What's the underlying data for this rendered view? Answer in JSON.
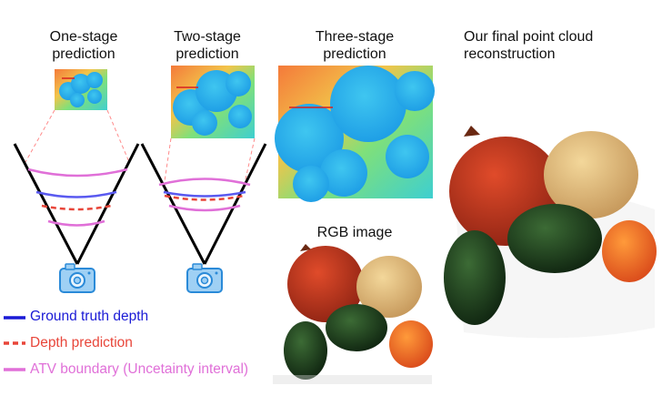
{
  "titles": {
    "one_stage": [
      "One-stage",
      "prediction"
    ],
    "two_stage": [
      "Two-stage",
      "prediction"
    ],
    "three_stage": [
      "Three-stage",
      "prediction"
    ],
    "final": [
      "Our final point cloud",
      "reconstruction"
    ],
    "rgb": "RGB image"
  },
  "legend": [
    {
      "label": "Ground truth depth",
      "color": "#1a1ad6",
      "style": "solid"
    },
    {
      "label": "Depth prediction",
      "color": "#e8463a",
      "style": "dashed"
    },
    {
      "label": "ATV boundary (Uncetainty interval)",
      "color": "#e070d8",
      "style": "solid"
    }
  ],
  "icons": [
    "camera-icon",
    "camera-icon"
  ],
  "colors": {
    "depthmap_far": "#f06a3a",
    "depthmap_mid": "#39d2c8",
    "depthmap_near": "#29a6ea",
    "camera": "#9fd0f4",
    "camera_outline": "#2a8ad8"
  }
}
